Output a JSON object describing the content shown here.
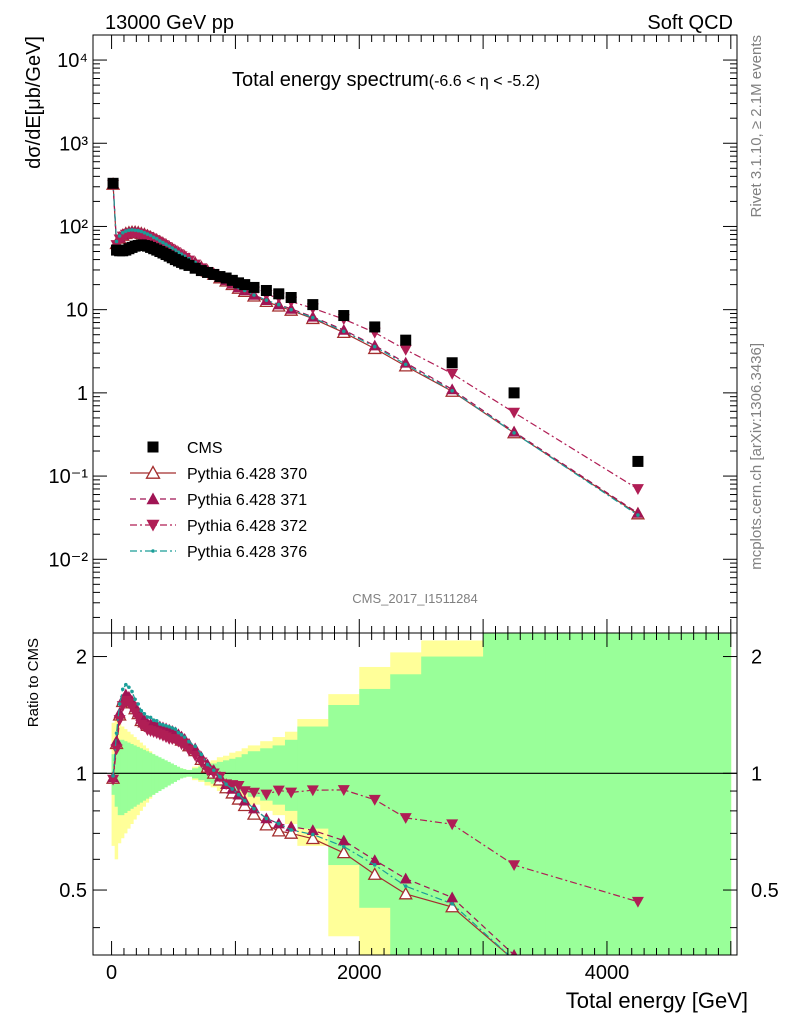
{
  "header": {
    "left": "13000 GeV pp",
    "right": "Soft QCD",
    "side_top": "Rivet 3.1.10, ≥ 2.1M events",
    "side_bottom": "mcplots.cern.ch [arXiv:1306.3436]",
    "analysis": "CMS_2017_I1511284"
  },
  "chart_data": [
    {
      "type": "scatter",
      "panel": "main",
      "title": "Total energy spectrum",
      "title_suffix": "(-6.6 < η < -5.2)",
      "ylabel": "dσ/dE[μb/GeV]",
      "xlim": [
        -150,
        5050
      ],
      "ylim": [
        0.0013,
        20000
      ],
      "yscale": "log",
      "y_tick_labels": [
        "10⁻²",
        "10⁻¹",
        "1",
        "10",
        "10²",
        "10³",
        "10⁴"
      ],
      "legend_position": "bottom-left",
      "series": [
        {
          "name": "CMS",
          "color": "#000000",
          "marker": "square",
          "x": [
            12,
            40,
            65,
            90,
            115,
            140,
            165,
            190,
            215,
            240,
            265,
            290,
            315,
            340,
            365,
            390,
            415,
            440,
            465,
            490,
            515,
            540,
            565,
            590,
            625,
            675,
            725,
            775,
            825,
            875,
            925,
            975,
            1025,
            1075,
            1150,
            1250,
            1350,
            1450,
            1625,
            1875,
            2125,
            2375,
            2750,
            3250,
            4250
          ],
          "y": [
            330,
            52,
            51,
            51,
            52,
            54,
            56,
            58,
            59,
            60,
            59,
            58,
            56,
            54,
            52,
            50,
            48,
            46,
            44,
            42,
            40,
            38.5,
            37,
            35.5,
            34,
            31.5,
            29.5,
            28,
            26.5,
            25,
            24,
            22.5,
            21,
            20,
            18.5,
            17,
            15.5,
            14,
            11.5,
            8.5,
            6.2,
            4.3,
            2.3,
            1.0,
            0.15
          ]
        },
        {
          "name": "Pythia 6.428 370",
          "color": "#a42e2e",
          "marker": "triangle-up-open",
          "line": "solid",
          "x": [
            12,
            40,
            65,
            90,
            115,
            140,
            165,
            190,
            215,
            240,
            265,
            290,
            315,
            340,
            365,
            390,
            415,
            440,
            465,
            490,
            515,
            540,
            565,
            590,
            625,
            675,
            725,
            775,
            825,
            875,
            925,
            975,
            1025,
            1075,
            1150,
            1250,
            1350,
            1450,
            1625,
            1875,
            2125,
            2375,
            2750,
            3250,
            4250
          ],
          "y": [
            320,
            62,
            72,
            78,
            82,
            84,
            85,
            85,
            84,
            82,
            80,
            77,
            74,
            71,
            68,
            65,
            62,
            59,
            56,
            53,
            50,
            47.5,
            45,
            43,
            40,
            36,
            32,
            29,
            26.5,
            24,
            22,
            20,
            18,
            16.5,
            14.5,
            12.5,
            11,
            9.8,
            7.8,
            5.3,
            3.4,
            2.1,
            1.04,
            0.33,
            0.035
          ]
        },
        {
          "name": "Pythia 6.428 371",
          "color": "#a01454",
          "marker": "triangle-up",
          "line": "dashed",
          "x": [
            12,
            40,
            65,
            90,
            115,
            140,
            165,
            190,
            215,
            240,
            265,
            290,
            315,
            340,
            365,
            390,
            415,
            440,
            465,
            490,
            515,
            540,
            565,
            590,
            625,
            675,
            725,
            775,
            825,
            875,
            925,
            975,
            1025,
            1075,
            1150,
            1250,
            1350,
            1450,
            1625,
            1875,
            2125,
            2375,
            2750,
            3250,
            4250
          ],
          "y": [
            322,
            63,
            73,
            79,
            83,
            85,
            86,
            86,
            85,
            83,
            81,
            78,
            75,
            72,
            69,
            66,
            63,
            60,
            57,
            54,
            51,
            48.5,
            46,
            43.5,
            40.5,
            36.5,
            32.5,
            29.5,
            27,
            24.5,
            22.5,
            20.5,
            18.5,
            17,
            15,
            13,
            11.5,
            10.2,
            8.2,
            5.7,
            3.7,
            2.3,
            1.1,
            0.34,
            0.036
          ]
        },
        {
          "name": "Pythia 6.428 372",
          "color": "#b01e55",
          "marker": "triangle-down",
          "line": "dashdot",
          "x": [
            12,
            40,
            65,
            90,
            115,
            140,
            165,
            190,
            215,
            240,
            265,
            290,
            315,
            340,
            365,
            390,
            415,
            440,
            465,
            490,
            515,
            540,
            565,
            590,
            625,
            675,
            725,
            775,
            825,
            875,
            925,
            975,
            1025,
            1075,
            1150,
            1250,
            1350,
            1450,
            1625,
            1875,
            2125,
            2375,
            2750,
            3250,
            4250
          ],
          "y": [
            318,
            60,
            70,
            76,
            80,
            82,
            83,
            83,
            82,
            80,
            78,
            75,
            72,
            69,
            66,
            63,
            60,
            57,
            54,
            51.5,
            49,
            46.5,
            44,
            42,
            39,
            35,
            31.5,
            28.5,
            26.5,
            24.5,
            22.5,
            21,
            19.5,
            18,
            16.5,
            15,
            14,
            12.5,
            10.4,
            7.7,
            5.3,
            3.3,
            1.7,
            0.58,
            0.07
          ]
        },
        {
          "name": "Pythia 6.428 376",
          "color": "#1b9e98",
          "marker": "dot",
          "line": "dashdot",
          "x": [
            12,
            40,
            65,
            90,
            115,
            140,
            165,
            190,
            215,
            240,
            265,
            290,
            315,
            340,
            365,
            390,
            415,
            440,
            465,
            490,
            515,
            540,
            565,
            590,
            625,
            675,
            725,
            775,
            825,
            875,
            925,
            975,
            1025,
            1075,
            1150,
            1250,
            1350,
            1450,
            1625,
            1875,
            2125,
            2375,
            2750,
            3250,
            4250
          ],
          "y": [
            325,
            66,
            77,
            84,
            88,
            90,
            91,
            90,
            89,
            87,
            84,
            81,
            78,
            74,
            71,
            67,
            64,
            61,
            58,
            55,
            52,
            49,
            46.5,
            44,
            41,
            37,
            33,
            29.5,
            27,
            24.5,
            22.5,
            20.5,
            18.5,
            17,
            15,
            13,
            11.5,
            10,
            8,
            5.5,
            3.6,
            2.2,
            1.06,
            0.33,
            0.034
          ]
        }
      ]
    },
    {
      "type": "scatter",
      "panel": "ratio",
      "ylabel": "Ratio to CMS",
      "xlabel": "Total energy [GeV]",
      "xlim": [
        -150,
        5050
      ],
      "ylim": [
        0.34,
        2.3
      ],
      "x_ticks": [
        0,
        2000,
        4000
      ],
      "y_ticks": [
        0.5,
        1,
        2
      ],
      "reference_line": 1,
      "band_colors": {
        "stat": "#99ff99",
        "syst": "#ffff99"
      },
      "bands": {
        "x_edges": [
          0,
          25,
          50,
          75,
          100,
          125,
          150,
          175,
          200,
          225,
          250,
          275,
          300,
          325,
          350,
          375,
          400,
          425,
          450,
          475,
          500,
          525,
          550,
          575,
          600,
          650,
          700,
          750,
          800,
          850,
          900,
          950,
          1000,
          1050,
          1100,
          1200,
          1300,
          1400,
          1500,
          1750,
          2000,
          2250,
          2500,
          3000,
          3500,
          5000
        ],
        "stat_lo": [
          0.88,
          0.82,
          0.78,
          0.78,
          0.79,
          0.8,
          0.81,
          0.82,
          0.83,
          0.84,
          0.85,
          0.86,
          0.87,
          0.88,
          0.89,
          0.9,
          0.91,
          0.92,
          0.93,
          0.94,
          0.95,
          0.96,
          0.97,
          0.975,
          0.98,
          0.97,
          0.96,
          0.95,
          0.94,
          0.93,
          0.92,
          0.91,
          0.9,
          0.89,
          0.87,
          0.85,
          0.83,
          0.8,
          0.72,
          0.58,
          0.45,
          0.34,
          0.34,
          0.34,
          0.34
        ],
        "stat_hi": [
          1.12,
          1.18,
          1.22,
          1.22,
          1.21,
          1.2,
          1.19,
          1.18,
          1.17,
          1.16,
          1.15,
          1.14,
          1.13,
          1.12,
          1.11,
          1.1,
          1.09,
          1.08,
          1.07,
          1.06,
          1.05,
          1.04,
          1.03,
          1.025,
          1.02,
          1.03,
          1.04,
          1.05,
          1.06,
          1.07,
          1.08,
          1.09,
          1.1,
          1.12,
          1.14,
          1.16,
          1.18,
          1.22,
          1.32,
          1.5,
          1.65,
          1.8,
          2.0,
          2.3,
          2.3
        ],
        "syst_lo": [
          0.65,
          0.6,
          0.66,
          0.68,
          0.7,
          0.72,
          0.74,
          0.76,
          0.78,
          0.8,
          0.82,
          0.84,
          0.86,
          0.88,
          0.9,
          0.91,
          0.92,
          0.93,
          0.94,
          0.95,
          0.96,
          0.965,
          0.97,
          0.975,
          0.98,
          0.96,
          0.95,
          0.93,
          0.92,
          0.9,
          0.89,
          0.87,
          0.86,
          0.85,
          0.83,
          0.8,
          0.78,
          0.74,
          0.65,
          0.38,
          0.34,
          0.34,
          0.34,
          0.34,
          0.34
        ],
        "syst_hi": [
          1.35,
          1.4,
          1.34,
          1.32,
          1.3,
          1.28,
          1.26,
          1.24,
          1.22,
          1.2,
          1.18,
          1.16,
          1.14,
          1.12,
          1.1,
          1.09,
          1.08,
          1.07,
          1.06,
          1.05,
          1.04,
          1.035,
          1.03,
          1.025,
          1.02,
          1.04,
          1.05,
          1.07,
          1.08,
          1.1,
          1.11,
          1.13,
          1.14,
          1.16,
          1.18,
          1.21,
          1.24,
          1.28,
          1.38,
          1.6,
          1.88,
          2.05,
          2.2,
          2.3,
          2.3
        ]
      }
    }
  ]
}
